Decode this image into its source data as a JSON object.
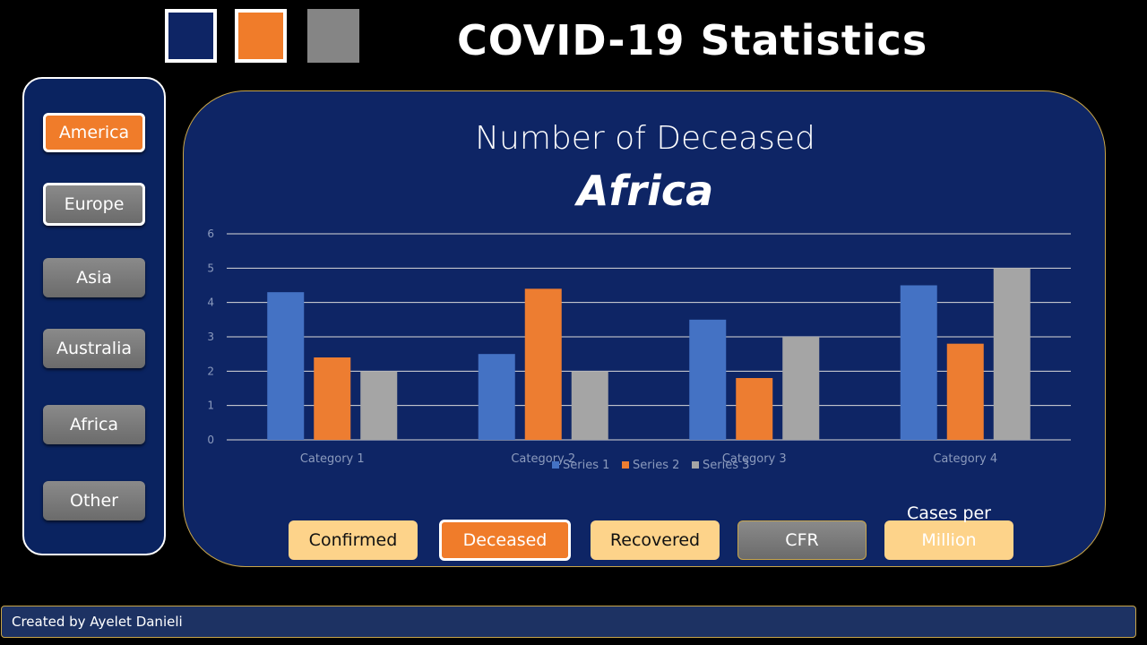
{
  "theme_swatches": [
    {
      "name": "navy",
      "color": "#0e2565"
    },
    {
      "name": "orange",
      "color": "#f07c2a"
    },
    {
      "name": "gray",
      "color": "#858585"
    }
  ],
  "title": "COVID-19 Statistics",
  "regions": [
    {
      "label": "America",
      "state": "orange"
    },
    {
      "label": "Europe",
      "state": "outlined"
    },
    {
      "label": "Asia",
      "state": "normal"
    },
    {
      "label": "Australia",
      "state": "normal"
    },
    {
      "label": "Africa",
      "state": "normal"
    },
    {
      "label": "Other",
      "state": "normal"
    }
  ],
  "chart": {
    "subtitle": "Number of Deceased",
    "region_title": "Africa"
  },
  "chart_data": {
    "type": "bar",
    "categories": [
      "Category 1",
      "Category 2",
      "Category 3",
      "Category 4"
    ],
    "series": [
      {
        "name": "Series 1",
        "color": "#4472c4",
        "values": [
          4.3,
          2.5,
          3.5,
          4.5
        ]
      },
      {
        "name": "Series 2",
        "color": "#ed7d31",
        "values": [
          2.4,
          4.4,
          1.8,
          2.8
        ]
      },
      {
        "name": "Series 3",
        "color": "#a5a5a5",
        "values": [
          2,
          2,
          3,
          5
        ]
      }
    ],
    "ylim": [
      0,
      6
    ],
    "yticks": [
      "0",
      "1",
      "2",
      "3",
      "4",
      "5",
      "6"
    ],
    "grid": true,
    "legend_position": "bottom"
  },
  "metrics": [
    {
      "label": "Confirmed",
      "state": "normal"
    },
    {
      "label": "Deceased",
      "state": "active"
    },
    {
      "label": "Recovered",
      "state": "normal"
    },
    {
      "label": "CFR",
      "state": "gray"
    },
    {
      "label": "Million",
      "state": "faded"
    }
  ],
  "cases_caption": "Cases per",
  "footer": "Created by Ayelet Danieli"
}
